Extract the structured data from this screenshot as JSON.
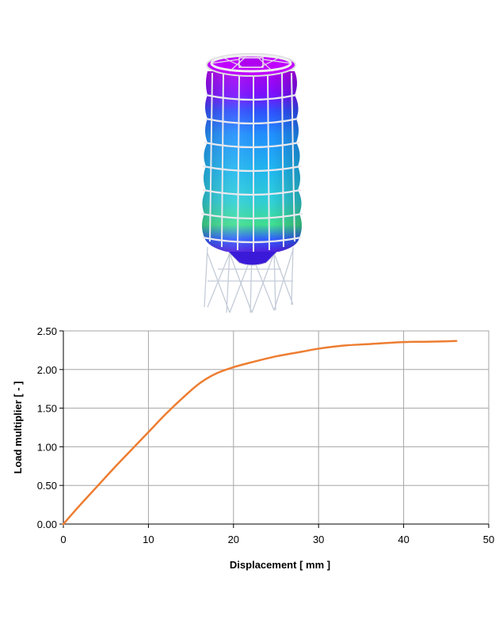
{
  "chart_data": {
    "type": "line",
    "xlabel": "Displacement  [ mm ]",
    "ylabel": "Load multiplier     [ - ]",
    "xlim": [
      0,
      50
    ],
    "ylim": [
      0,
      2.5
    ],
    "x_ticks": [
      "0",
      "10",
      "20",
      "30",
      "40",
      "50"
    ],
    "y_ticks": [
      "0.00",
      "0.50",
      "1.00",
      "1.50",
      "2.00",
      "2.50"
    ],
    "grid": true,
    "legend": "none",
    "series": [
      {
        "color": "#ED7D31",
        "x": [
          0,
          2,
          4,
          6,
          8,
          10,
          12,
          14,
          16,
          18,
          20,
          22,
          25,
          28,
          30,
          33,
          36,
          40,
          43,
          46.2
        ],
        "y": [
          0,
          0.25,
          0.49,
          0.73,
          0.96,
          1.19,
          1.42,
          1.63,
          1.82,
          1.95,
          2.03,
          2.09,
          2.17,
          2.23,
          2.27,
          2.31,
          2.33,
          2.355,
          2.36,
          2.37
        ]
      }
    ]
  },
  "colors": {
    "curve": "#ED7D31",
    "grid": "#A6A6A6",
    "axis": "#000000",
    "frame": "#A6A6A6"
  }
}
